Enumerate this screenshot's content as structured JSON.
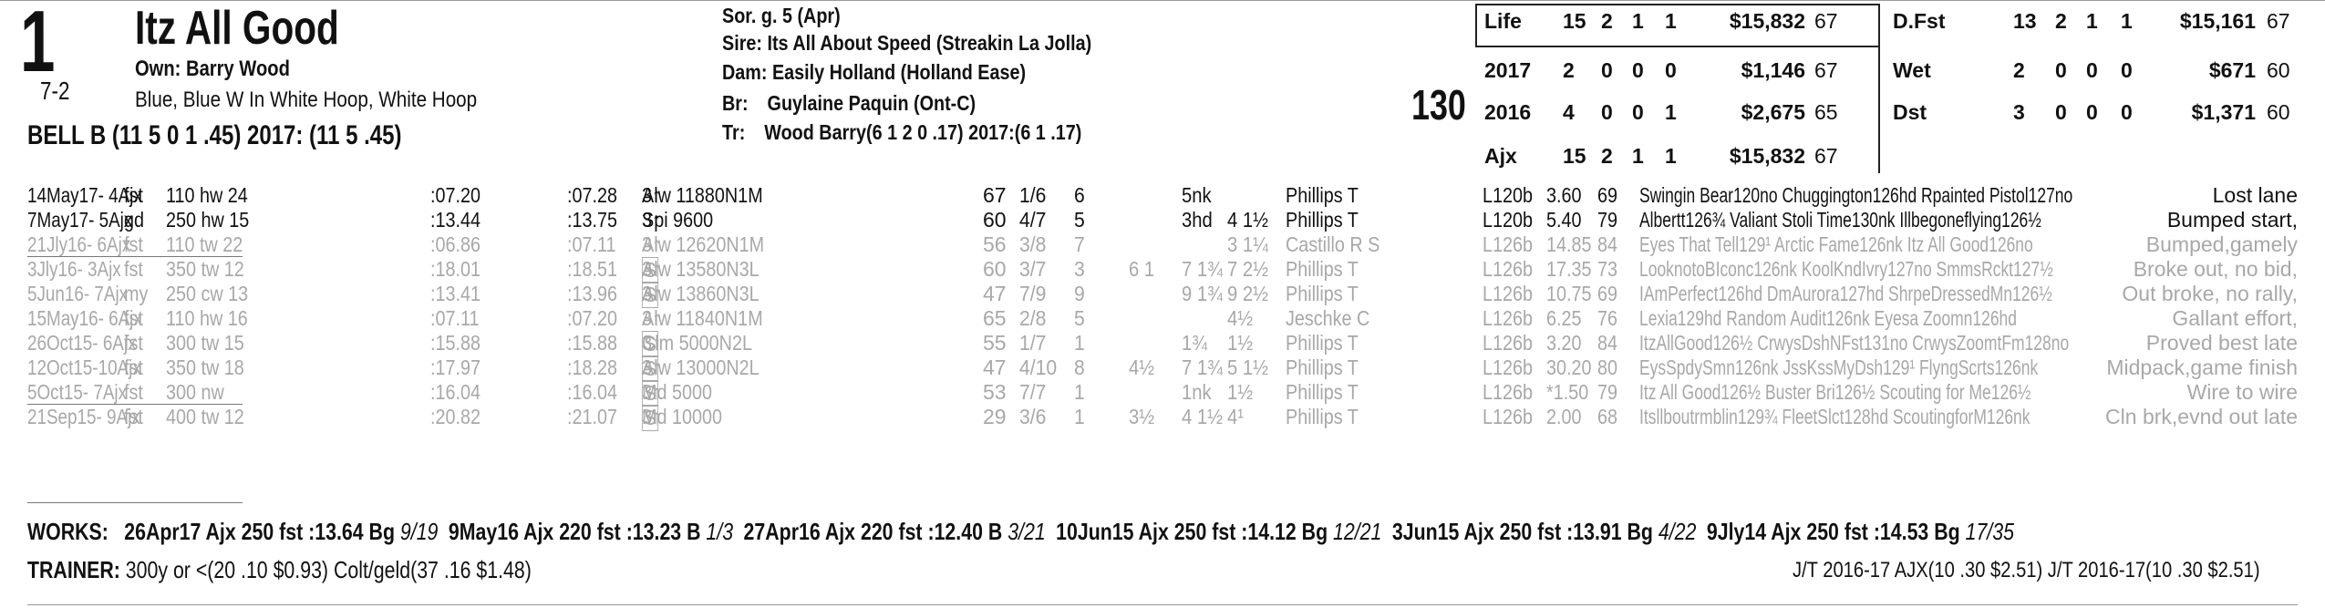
{
  "header": {
    "program_number": "1",
    "odds": "7-2",
    "horse_name": "Itz All Good",
    "owner_label": "Own:",
    "owner": "Barry Wood",
    "silks": "Blue, Blue W In White Hoop, White Hoop",
    "jockey_line": "BELL B (11 5 0 1 .45) 2017: (11 5 .45)",
    "breeding": {
      "sex_age": "Sor. g. 5 (Apr)",
      "sire_label": "Sire:",
      "sire": "Its All About Speed (Streakin La Jolla)",
      "dam_label": "Dam:",
      "dam": "Easily Holland (Holland Ease)",
      "breeder_label": "Br:",
      "breeder": "Guylaine Paquin (Ont-C)",
      "trainer_label": "Tr:",
      "trainer": "Wood Barry(6 1 2 0 .17) 2017:(6 1 .17)"
    },
    "weight": "130"
  },
  "stats": [
    {
      "label": "Life",
      "s": "15",
      "w": "2",
      "p": "1",
      "sh": "1",
      "earn": "$15,832",
      "sr": "67"
    },
    {
      "label": "2017",
      "s": "2",
      "w": "0",
      "p": "0",
      "sh": "0",
      "earn": "$1,146",
      "sr": "67"
    },
    {
      "label": "2016",
      "s": "4",
      "w": "0",
      "p": "0",
      "sh": "1",
      "earn": "$2,675",
      "sr": "65"
    },
    {
      "label": "Ajx",
      "s": "15",
      "w": "2",
      "p": "1",
      "sh": "1",
      "earn": "$15,832",
      "sr": "67"
    }
  ],
  "surface_stats": [
    {
      "label": "D.Fst",
      "s": "13",
      "w": "2",
      "p": "1",
      "sh": "1",
      "earn": "$15,161",
      "sr": "67"
    },
    {
      "label": "Wet",
      "s": "2",
      "w": "0",
      "p": "0",
      "sh": "0",
      "earn": "$671",
      "sr": "60"
    },
    {
      "label": "Dst",
      "s": "3",
      "w": "0",
      "p": "0",
      "sh": "0",
      "earn": "$1,371",
      "sr": "60"
    }
  ],
  "races": [
    {
      "date": "14May17- 4Ajx",
      "trk": "fst",
      "dist": "110 hw 24",
      "t1": ":07.20",
      "t2": ":07.28",
      "age": "3↑",
      "s_box": "",
      "cls": "Alw 11880N1M",
      "speed": "67",
      "pp": "1/6",
      "st": "6",
      "c1": "",
      "c2": "5nk",
      "fin": "",
      "jockey": "Phillips T",
      "med": "L120b",
      "odds": "3.60",
      "sr": "69",
      "comp": "Swingin Bear120no Chuggington126hd Rpainted Pistol127no",
      "comment": "Lost lane",
      "dim": false
    },
    {
      "date": "7May17- 5Ajx",
      "trk": "gd",
      "dist": "250 hw 15",
      "t1": ":13.44",
      "t2": ":13.75",
      "age": "3↑",
      "s_box": "",
      "cls": "Spi 9600",
      "speed": "60",
      "pp": "4/7",
      "st": "5",
      "c1": "",
      "c2": "3hd",
      "fin": "4 1½",
      "jockey": "Phillips T",
      "med": "L120b",
      "odds": "5.40",
      "sr": "79",
      "comp": "Albertt126¾ Valiant Stoli Time130nk Illbegoneflying126½",
      "comment": "Bumped start,",
      "dim": false
    },
    {
      "date": "21Jly16- 6Ajx",
      "trk": "fst",
      "dist": "110 tw 22",
      "t1": ":06.86",
      "t2": ":07.11",
      "age": "3↑",
      "s_box": "",
      "cls": "Alw 12620N1M",
      "speed": "56",
      "pp": "3/8",
      "st": "7",
      "c1": "",
      "c2": "",
      "fin": "3 1¼",
      "jockey": "Castillo R S",
      "med": "L126b",
      "odds": "14.85",
      "sr": "84",
      "comp": "Eyes That Tell129¹ Arctic Fame126nk Itz All Good126no",
      "comment": "Bumped,gamely",
      "dim": true
    },
    {
      "date": "3Jly16- 3Ajx",
      "trk": "fst",
      "dist": "350 tw 12",
      "t1": ":18.01",
      "t2": ":18.51",
      "age": "3↑",
      "s_box": "S",
      "cls": "Alw 13580N3L",
      "speed": "60",
      "pp": "3/7",
      "st": "3",
      "c1": "6 1",
      "c2": "7 1¾",
      "fin": "7 2½",
      "jockey": "Phillips T",
      "med": "L126b",
      "odds": "17.35",
      "sr": "73",
      "comp": "LooknotoBIconc126nk KoolKndIvry127no SmmsRckt127½",
      "comment": "Broke out, no bid,",
      "dim": true
    },
    {
      "date": "5Jun16- 7Ajx",
      "trk": "my",
      "dist": "250 cw 13",
      "t1": ":13.41",
      "t2": ":13.96",
      "age": "3↑",
      "s_box": "S",
      "cls": "Alw 13860N3L",
      "speed": "47",
      "pp": "7/9",
      "st": "9",
      "c1": "",
      "c2": "9 1¾",
      "fin": "9 2½",
      "jockey": "Phillips T",
      "med": "L126b",
      "odds": "10.75",
      "sr": "69",
      "comp": "IAmPerfect126hd DmAurora127hd ShrpeDressedMn126½",
      "comment": "Out broke, no rally,",
      "dim": true
    },
    {
      "date": "15May16- 6Ajx",
      "trk": "fst",
      "dist": "110 hw 16",
      "t1": ":07.11",
      "t2": ":07.20",
      "age": "3↑",
      "s_box": "",
      "cls": "Alw 11840N1M",
      "speed": "65",
      "pp": "2/8",
      "st": "5",
      "c1": "",
      "c2": "",
      "fin": "4½",
      "jockey": "Jeschke C",
      "med": "L126b",
      "odds": "6.25",
      "sr": "76",
      "comp": "Lexia129hd Random Audit126nk Eyesa Zoomn126hd",
      "comment": "Gallant effort,",
      "dim": true
    },
    {
      "date": "26Oct15- 6Ajx",
      "trk": "fst",
      "dist": "300 tw 15",
      "t1": ":15.88",
      "t2": ":15.88",
      "age": "3↑",
      "s_box": "S",
      "cls": "Clm 5000N2L",
      "speed": "55",
      "pp": "1/7",
      "st": "1",
      "c1": "",
      "c2": "1¾",
      "fin": "1½",
      "jockey": "Phillips T",
      "med": "L126b",
      "odds": "3.20",
      "sr": "84",
      "comp": "ItzAllGood126½ CrwysDshNFst131no CrwysZoomtFm128no",
      "comment": "Proved best late",
      "dim": true
    },
    {
      "date": "12Oct15-10Ajx",
      "trk": "fst",
      "dist": "350 tw 18",
      "t1": ":17.97",
      "t2": ":18.28",
      "age": "3↑",
      "s_box": "S",
      "cls": "Alw 13000N2L",
      "speed": "47",
      "pp": "4/10",
      "st": "8",
      "c1": "4½",
      "c2": "7 1¾",
      "fin": "5 1½",
      "jockey": "Phillips T",
      "med": "L126b",
      "odds": "30.20",
      "sr": "80",
      "comp": "EysSpdySmn126nk JssKssMyDsh129¹ FlyngScrts126nk",
      "comment": "Midpack,game finish",
      "dim": true
    },
    {
      "date": "5Oct15- 7Ajx",
      "trk": "fst",
      "dist": "300 nw",
      "t1": ":16.04",
      "t2": ":16.04",
      "age": "3↑",
      "s_box": "S",
      "cls": "Md 5000",
      "speed": "53",
      "pp": "7/7",
      "st": "1",
      "c1": "",
      "c2": "1nk",
      "fin": "1½",
      "jockey": "Phillips T",
      "med": "L126b",
      "odds": "*1.50",
      "sr": "79",
      "comp": "Itz All Good126½ Buster Bri126½ Scouting for Me126½",
      "comment": "Wire to wire",
      "dim": true
    },
    {
      "date": "21Sep15- 9Ajx",
      "trk": "fst",
      "dist": "400 tw 12",
      "t1": ":20.82",
      "t2": ":21.07",
      "age": "3↑",
      "s_box": "S",
      "cls": "Md 10000",
      "speed": "29",
      "pp": "3/6",
      "st": "1",
      "c1": "3½",
      "c2": "4 1½",
      "fin": "4¹",
      "jockey": "Phillips T",
      "med": "L126b",
      "odds": "2.00",
      "sr": "68",
      "comp": "Itsllboutrmblin129¾ FleetSlct128hd ScoutingforM126nk",
      "comment": "Cln brk,evnd out late",
      "dim": true
    }
  ],
  "works": {
    "label": "WORKS:",
    "items": [
      {
        "date": "26Apr17",
        "trk": "Ajx",
        "dist": "250",
        "cond": "fst",
        "time": ":13.64",
        "grade": "Bg",
        "rank": "9/19"
      },
      {
        "date": "9May16",
        "trk": "Ajx",
        "dist": "220",
        "cond": "fst",
        "time": ":13.23",
        "grade": "B",
        "rank": "1/3"
      },
      {
        "date": "27Apr16",
        "trk": "Ajx",
        "dist": "220",
        "cond": "fst",
        "time": ":12.40",
        "grade": "B",
        "rank": "3/21"
      },
      {
        "date": "10Jun15",
        "trk": "Ajx",
        "dist": "250",
        "cond": "fst",
        "time": ":14.12",
        "grade": "Bg",
        "rank": "12/21"
      },
      {
        "date": "3Jun15",
        "trk": "Ajx",
        "dist": "250",
        "cond": "fst",
        "time": ":13.91",
        "grade": "Bg",
        "rank": "4/22"
      },
      {
        "date": "9Jly14",
        "trk": "Ajx",
        "dist": "250",
        "cond": "fst",
        "time": ":14.53",
        "grade": "Bg",
        "rank": "17/35"
      }
    ]
  },
  "trainer_stats": {
    "label": "TRAINER:",
    "text": "300y or <(20 .10 $0.93) Colt/geld(37 .16 $1.48)",
    "jt": "J/T 2016-17 AJX(10 .30 $2.51)  J/T 2016-17(10 .30 $2.51)"
  }
}
